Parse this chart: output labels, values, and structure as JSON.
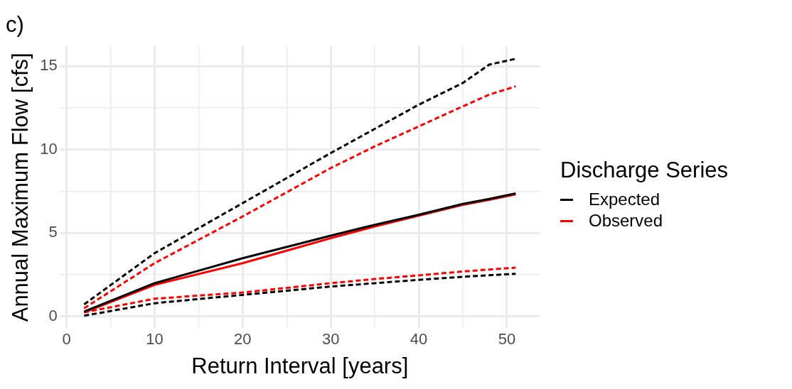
{
  "chart_data": {
    "type": "line",
    "title": "c)",
    "xlabel": "Return Interval [years]",
    "ylabel": "Annual Maximum Flow [cfs]",
    "legend_title": "Discharge Series",
    "legend": "right",
    "grid": true,
    "marker": "none",
    "x": [
      2,
      10,
      20,
      30,
      35,
      40,
      45,
      48,
      51
    ],
    "xlim": [
      -0.8,
      53.8
    ],
    "xticks": [
      0,
      {
        "value": 5,
        "label": null
      },
      10,
      {
        "value": 15,
        "label": null
      },
      20,
      {
        "value": 25,
        "label": null
      },
      30,
      {
        "value": 35,
        "label": null
      },
      40,
      {
        "value": 45,
        "label": null
      },
      50
    ],
    "ylim": [
      -0.7,
      16.2
    ],
    "yticks": [
      0,
      {
        "value": 2.5,
        "label": null
      },
      5,
      {
        "value": 7.5,
        "label": null
      },
      10,
      {
        "value": 12.5,
        "label": null
      },
      15
    ],
    "series": [
      {
        "name": "Expected",
        "color": "#000000",
        "line_style": "solid",
        "values": [
          0.3,
          2.0,
          3.5,
          4.85,
          5.5,
          6.1,
          6.75,
          7.05,
          7.38
        ]
      },
      {
        "name": "Observed",
        "color": "#ff0000",
        "line_style": "solid",
        "values": [
          0.25,
          1.9,
          3.2,
          4.7,
          5.4,
          6.05,
          6.7,
          7.0,
          7.33
        ]
      },
      {
        "color": "#000000",
        "line_style": "dashed",
        "values": [
          0.73,
          3.8,
          6.8,
          9.8,
          11.25,
          12.7,
          14.0,
          15.1,
          15.45
        ]
      },
      {
        "color": "#ff0000",
        "line_style": "dashed",
        "values": [
          0.5,
          3.2,
          6.0,
          8.9,
          10.2,
          11.4,
          12.6,
          13.3,
          13.8
        ]
      },
      {
        "color": "#000000",
        "line_style": "dashed",
        "values": [
          0.05,
          0.8,
          1.3,
          1.8,
          2.0,
          2.2,
          2.38,
          2.48,
          2.56
        ]
      },
      {
        "color": "#ff0000",
        "line_style": "dashed",
        "values": [
          0.25,
          1.07,
          1.44,
          2.0,
          2.25,
          2.47,
          2.7,
          2.82,
          2.93
        ]
      }
    ]
  }
}
